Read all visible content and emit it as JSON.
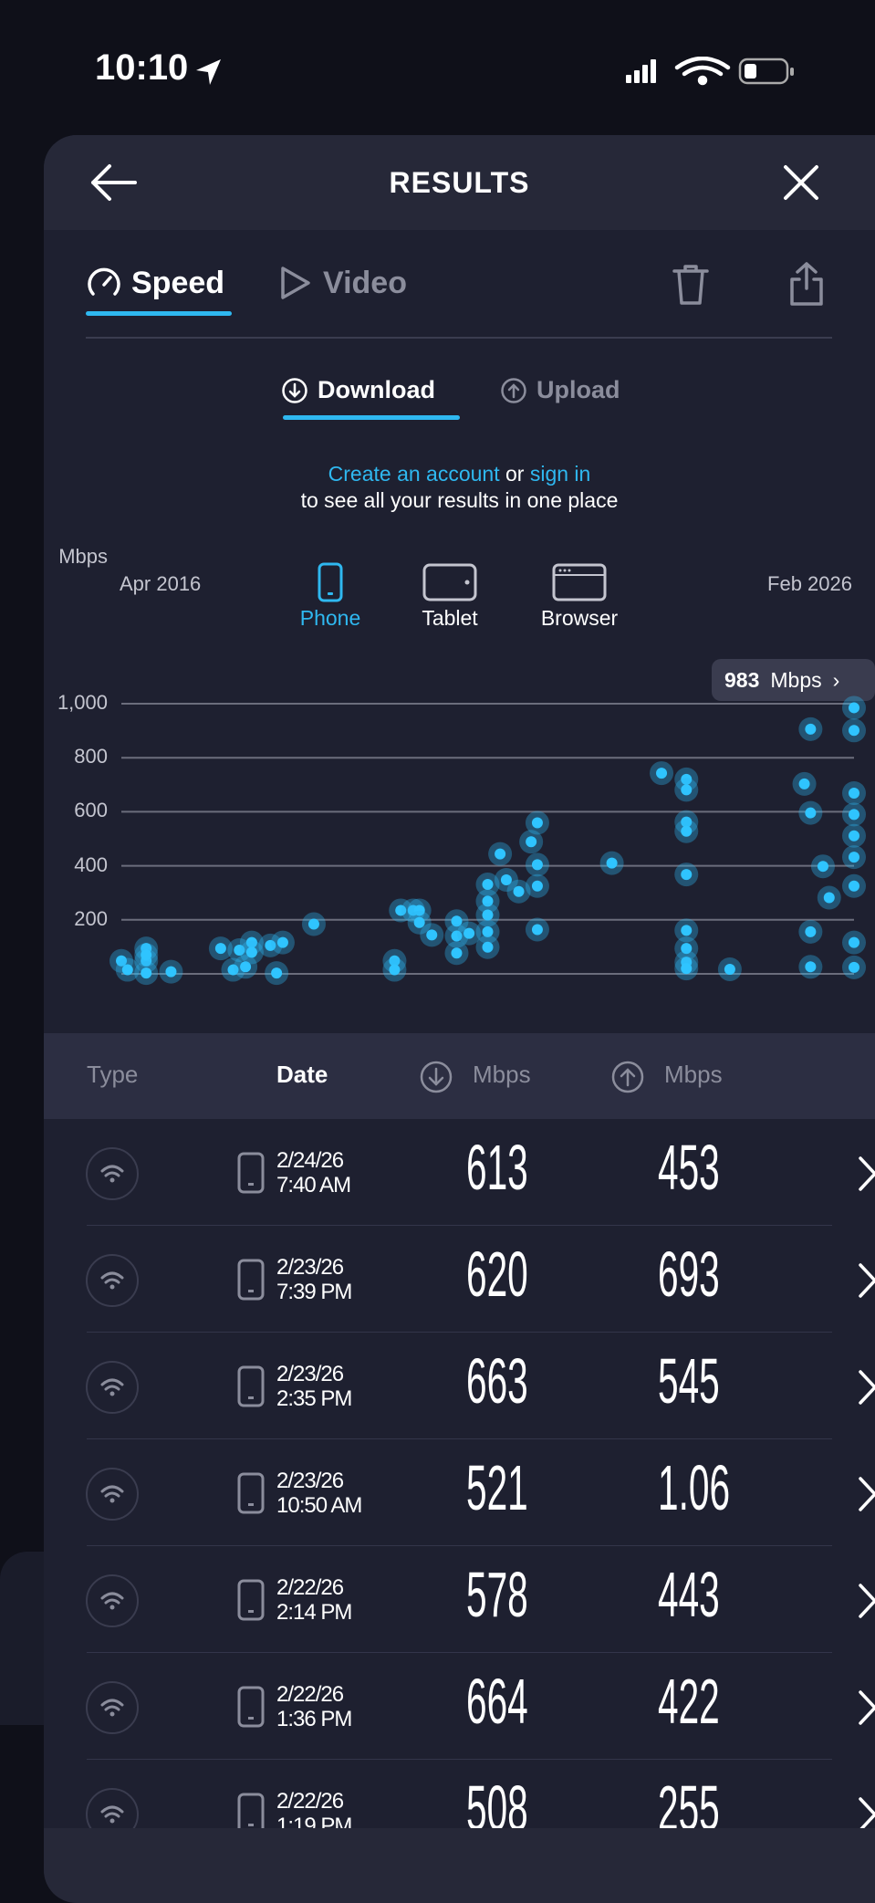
{
  "status_bar": {
    "time": "10:10"
  },
  "header": {
    "title": "RESULTS"
  },
  "tabs": [
    {
      "label": "Speed",
      "active": true
    },
    {
      "label": "Video",
      "active": false
    }
  ],
  "subtabs": [
    {
      "label": "Download",
      "active": true
    },
    {
      "label": "Upload",
      "active": false
    }
  ],
  "account_msg": {
    "create": "Create an account",
    "or": " or ",
    "sign_in": "sign in",
    "line2": "to see all your results in one place"
  },
  "devices": [
    {
      "label": "Phone",
      "active": true
    },
    {
      "label": "Tablet"
    },
    {
      "label": "Browser"
    }
  ],
  "colors": {
    "accent": "#2fb8f0",
    "background": "#1e2030"
  },
  "chart_data": {
    "type": "scatter",
    "ylabel": "Mbps",
    "yticks": [
      "1,000",
      "800",
      "600",
      "400",
      "200"
    ],
    "ylim": [
      0,
      1000
    ],
    "xlim": [
      "2016-04",
      "2026-02"
    ],
    "xtick_labels": [
      "Apr 2016",
      "Feb 2026"
    ],
    "grid": true,
    "max_badge": {
      "value": "983",
      "unit": "Mbps"
    },
    "points": [
      [
        "2016-04",
        48
      ],
      [
        "2016-05",
        15
      ],
      [
        "2016-08",
        94
      ],
      [
        "2016-08",
        48
      ],
      [
        "2016-08",
        3
      ],
      [
        "2016-08",
        70
      ],
      [
        "2016-12",
        8
      ],
      [
        "2017-08",
        94
      ],
      [
        "2017-10",
        15
      ],
      [
        "2017-11",
        88
      ],
      [
        "2017-12",
        26
      ],
      [
        "2018-01",
        116
      ],
      [
        "2018-01",
        80
      ],
      [
        "2018-04",
        105
      ],
      [
        "2018-05",
        3
      ],
      [
        "2018-06",
        116
      ],
      [
        "2018-11",
        184
      ],
      [
        "2019-12",
        48
      ],
      [
        "2019-12",
        15
      ],
      [
        "2020-01",
        235
      ],
      [
        "2020-03",
        235
      ],
      [
        "2020-04",
        235
      ],
      [
        "2020-04",
        190
      ],
      [
        "2020-06",
        144
      ],
      [
        "2020-10",
        195
      ],
      [
        "2020-10",
        140
      ],
      [
        "2020-10",
        77
      ],
      [
        "2020-12",
        150
      ],
      [
        "2021-03",
        331
      ],
      [
        "2021-03",
        269
      ],
      [
        "2021-03",
        218
      ],
      [
        "2021-03",
        156
      ],
      [
        "2021-03",
        99
      ],
      [
        "2021-05",
        444
      ],
      [
        "2021-06",
        348
      ],
      [
        "2021-08",
        305
      ],
      [
        "2021-10",
        489
      ],
      [
        "2021-11",
        559
      ],
      [
        "2021-11",
        404
      ],
      [
        "2021-11",
        325
      ],
      [
        "2021-11",
        164
      ],
      [
        "2022-11",
        410
      ],
      [
        "2023-07",
        743
      ],
      [
        "2023-11",
        720
      ],
      [
        "2023-11",
        681
      ],
      [
        "2023-11",
        562
      ],
      [
        "2023-11",
        528
      ],
      [
        "2023-11",
        368
      ],
      [
        "2023-11",
        161
      ],
      [
        "2023-11",
        94
      ],
      [
        "2023-11",
        43
      ],
      [
        "2023-11",
        20
      ],
      [
        "2024-06",
        17
      ],
      [
        "2025-06",
        703
      ],
      [
        "2025-07",
        906
      ],
      [
        "2025-07",
        596
      ],
      [
        "2025-07",
        156
      ],
      [
        "2025-07",
        26
      ],
      [
        "2025-09",
        398
      ],
      [
        "2025-10",
        282
      ],
      [
        "2026-02",
        985
      ],
      [
        "2026-02",
        901
      ],
      [
        "2026-02",
        669
      ],
      [
        "2026-02",
        590
      ],
      [
        "2026-02",
        511
      ],
      [
        "2026-02",
        432
      ],
      [
        "2026-02",
        325
      ],
      [
        "2026-02",
        116
      ],
      [
        "2026-02",
        24
      ]
    ]
  },
  "table": {
    "headers": {
      "type": "Type",
      "date": "Date",
      "download": "Mbps",
      "upload": "Mbps"
    },
    "rows": [
      {
        "date": "2/24/26",
        "time": "7:40 AM",
        "download": "613",
        "upload": "453"
      },
      {
        "date": "2/23/26",
        "time": "7:39 PM",
        "download": "620",
        "upload": "693"
      },
      {
        "date": "2/23/26",
        "time": "2:35 PM",
        "download": "663",
        "upload": "545"
      },
      {
        "date": "2/23/26",
        "time": "10:50 AM",
        "download": "521",
        "upload": "1.06"
      },
      {
        "date": "2/22/26",
        "time": "2:14 PM",
        "download": "578",
        "upload": "443"
      },
      {
        "date": "2/22/26",
        "time": "1:36 PM",
        "download": "664",
        "upload": "422"
      },
      {
        "date": "2/22/26",
        "time": "1:19 PM",
        "download": "508",
        "upload": "255"
      }
    ]
  }
}
